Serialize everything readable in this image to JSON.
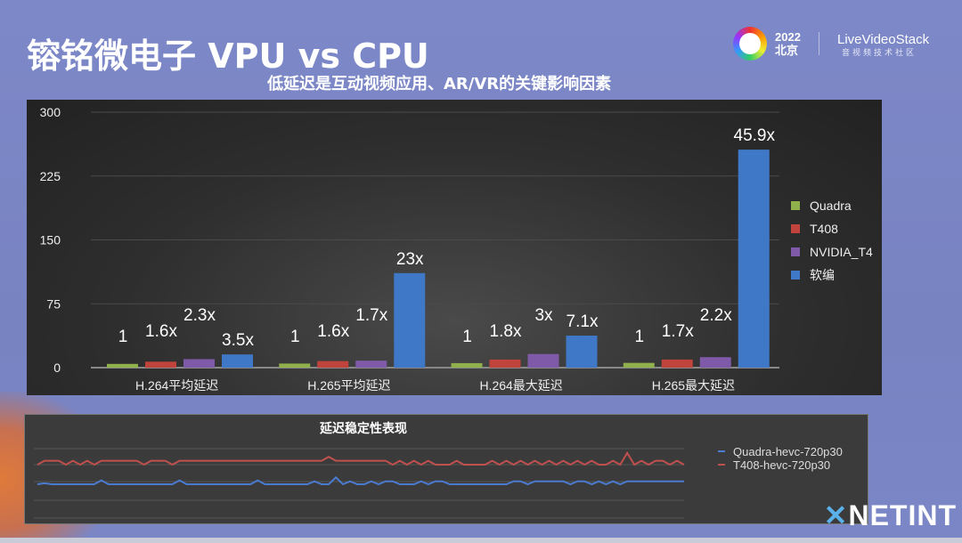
{
  "header": {
    "title": "镕铭微电子 VPU vs CPU",
    "subtitle": "低延迟是互动视频应用、AR/VR的关键影响因素"
  },
  "logos": {
    "event_year": "2022",
    "event_city": "北京",
    "brand": "LiveVideoStack",
    "brand_sub": "音视频技术社区",
    "footer_brand": "NETINT"
  },
  "chart_data": [
    {
      "type": "bar",
      "title": "",
      "categories": [
        "H.264平均延迟",
        "H.265平均延迟",
        "H.264最大延迟",
        "H.265最大延迟"
      ],
      "ylim": [
        0,
        300
      ],
      "yticks": [
        0,
        75,
        150,
        225,
        300
      ],
      "grid": true,
      "legend": "right",
      "series": [
        {
          "name": "Quadra",
          "color": "#8fb04a",
          "values": [
            4.4,
            4.8,
            5.3,
            5.6
          ],
          "labels": [
            "1",
            "1",
            "1",
            "1"
          ]
        },
        {
          "name": "T408",
          "color": "#c0433c",
          "values": [
            7,
            7.7,
            9.5,
            9.5
          ],
          "labels": [
            "1.6x",
            "1.6x",
            "1.8x",
            "1.7x"
          ]
        },
        {
          "name": "NVIDIA_T4",
          "color": "#7f5aa8",
          "values": [
            10,
            8.2,
            16,
            12.3
          ],
          "labels": [
            "2.3x",
            "1.7x",
            "3x",
            "2.2x"
          ]
        },
        {
          "name": "软编",
          "color": "#3f78c6",
          "values": [
            15.5,
            111,
            37.6,
            256
          ],
          "labels": [
            "3.5x",
            "23x",
            "7.1x",
            "45.9x"
          ]
        }
      ]
    },
    {
      "type": "line",
      "title": "延迟稳定性表现",
      "legend": "right",
      "grid": true,
      "series": [
        {
          "name": "Quadra-hevc-720p30",
          "color": "#4a7bd0",
          "values": [
            20,
            21,
            20,
            20,
            20,
            20,
            20,
            20,
            20,
            24,
            20,
            20,
            20,
            20,
            20,
            20,
            20,
            20,
            20,
            20,
            24,
            20,
            20,
            20,
            20,
            20,
            20,
            20,
            20,
            20,
            20,
            24,
            20,
            20,
            20,
            20,
            20,
            20,
            20,
            23,
            20,
            20,
            27,
            20,
            23,
            20,
            20,
            23,
            20,
            23,
            23,
            20,
            20,
            20,
            23,
            20,
            23,
            23,
            20,
            20,
            20,
            20,
            20,
            20,
            20,
            20,
            20,
            23,
            23,
            20,
            23,
            23,
            23,
            23,
            23,
            20,
            23,
            23,
            20,
            23,
            20,
            23,
            20,
            23,
            23,
            23,
            23,
            23,
            23,
            23,
            23,
            23
          ]
        },
        {
          "name": "T408-hevc-720p30",
          "color": "#c0504d",
          "values": [
            40,
            44,
            44,
            44,
            40,
            44,
            40,
            44,
            40,
            44,
            44,
            44,
            44,
            44,
            44,
            40,
            44,
            44,
            44,
            40,
            44,
            44,
            44,
            44,
            44,
            44,
            44,
            44,
            44,
            44,
            44,
            44,
            44,
            44,
            44,
            44,
            44,
            44,
            44,
            44,
            44,
            48,
            44,
            44,
            44,
            44,
            44,
            44,
            44,
            44,
            40,
            44,
            40,
            44,
            40,
            44,
            40,
            40,
            40,
            44,
            40,
            40,
            40,
            40,
            44,
            40,
            44,
            40,
            44,
            40,
            44,
            40,
            44,
            40,
            44,
            40,
            44,
            40,
            44,
            40,
            40,
            44,
            40,
            52,
            40,
            44,
            40,
            44,
            44,
            40,
            44,
            40
          ]
        }
      ]
    }
  ]
}
